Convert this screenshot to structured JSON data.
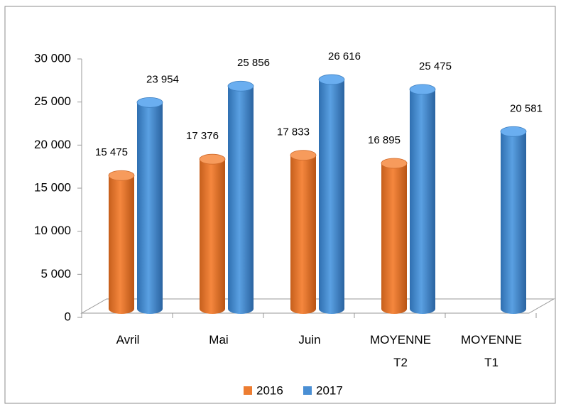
{
  "chart_data": {
    "type": "bar3d",
    "categories": [
      "Avril",
      "Mai",
      "Juin",
      "MOYENNE T2",
      "MOYENNE T1"
    ],
    "series": [
      {
        "name": "2016",
        "color": "#ed7d31",
        "values": [
          15475,
          17376,
          17833,
          16895,
          null
        ],
        "value_labels": [
          "15 475",
          "17 376",
          "17 833",
          "16 895",
          null
        ]
      },
      {
        "name": "2017",
        "color": "#4a8fd4",
        "values": [
          23954,
          25856,
          26616,
          25475,
          20581
        ],
        "value_labels": [
          "23 954",
          "25 856",
          "26 616",
          "25 475",
          "20 581"
        ]
      }
    ],
    "ylim": [
      0,
      30000
    ],
    "yticks": [
      0,
      {
        "value": 5000,
        "label": "5 000"
      },
      {
        "value": 10000,
        "label": "10 000"
      },
      {
        "value": 15000,
        "label": "15 000"
      },
      {
        "value": 20000,
        "label": "20 000"
      },
      {
        "value": 25000,
        "label": "25 000"
      },
      {
        "value": 30000,
        "label": "30 000"
      }
    ],
    "grid": false,
    "legend": "bottom"
  }
}
